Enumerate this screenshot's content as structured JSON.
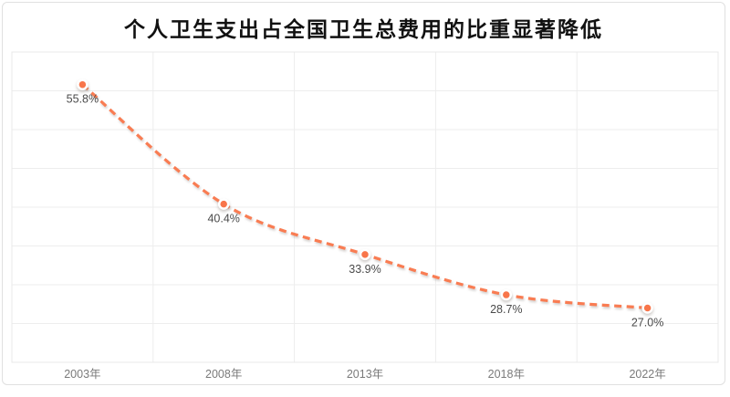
{
  "title": "个人卫生支出占全国卫生总费用的比重显著降低",
  "colors": {
    "line": "#f97c52",
    "marker_fill": "#f8754a",
    "marker_ring": "#ffffff",
    "grid": "#ededed",
    "plot_border": "#e9e9e9",
    "card_border": "#e0e0e0",
    "data_label": "#4a4a4a",
    "axis_label": "#7a7a7a",
    "title_color": "#111111",
    "background": "#ffffff"
  },
  "chart_data": {
    "type": "line",
    "title": "个人卫生支出占全国卫生总费用的比重显著降低",
    "line_style": "dashed",
    "smooth": true,
    "categories": [
      "2003年",
      "2008年",
      "2013年",
      "2018年",
      "2022年"
    ],
    "series": [
      {
        "name": "个人卫生支出占全国卫生总费用的比重",
        "values": [
          55.8,
          40.4,
          33.9,
          28.7,
          27.0
        ]
      }
    ],
    "data_labels": [
      "55.8%",
      "40.4%",
      "33.9%",
      "28.7%",
      "27.0%"
    ],
    "xlabel": "",
    "ylabel": "",
    "ylim": [
      20,
      60
    ],
    "y_gridline_step": 5,
    "grid": true,
    "legend": "none",
    "y_axis_labels_visible": false
  }
}
